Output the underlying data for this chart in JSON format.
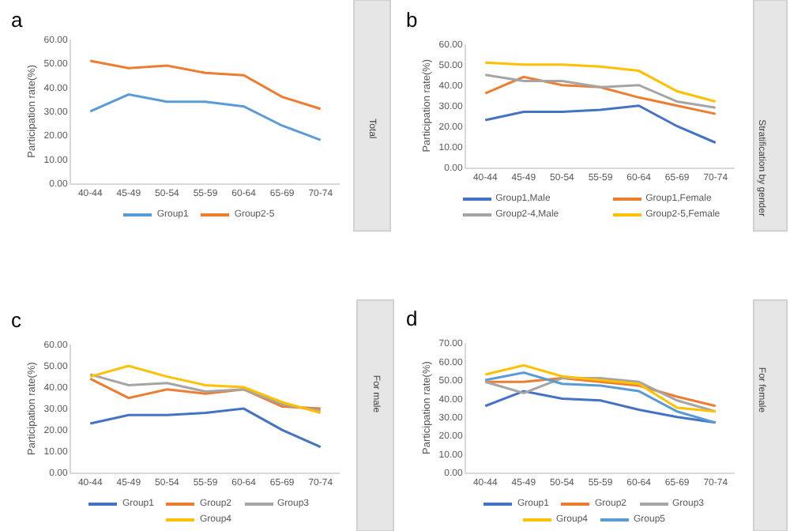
{
  "chart_data": [
    {
      "type": "line",
      "title": "a",
      "ylabel": "Participation rate(%)",
      "annotations": [
        "Total"
      ],
      "legend": "bottom",
      "categories": [
        "40-44",
        "45-49",
        "50-54",
        "55-59",
        "60-64",
        "65-69",
        "70-74"
      ],
      "ylim": [
        0,
        60
      ],
      "yticks": [
        {
          "value": 0,
          "label": "0.00"
        },
        {
          "value": 10,
          "label": "10.00"
        },
        {
          "value": 20,
          "label": "20.00"
        },
        {
          "value": 30,
          "label": "30.00"
        },
        {
          "value": 40,
          "label": "40.00"
        },
        {
          "value": 50,
          "label": "50.00"
        },
        {
          "value": 60,
          "label": "60.00"
        }
      ],
      "series": [
        {
          "name": "Group1",
          "color": "#5b9bd5",
          "values": [
            30,
            37,
            34,
            34,
            32,
            24,
            18
          ]
        },
        {
          "name": "Group2-5",
          "color": "#ed7d31",
          "values": [
            51,
            48,
            49,
            46,
            45,
            36,
            31
          ]
        }
      ]
    },
    {
      "type": "line",
      "title": "b",
      "ylabel": "Participation rate(%)",
      "annotations": [
        "Stratification by gender"
      ],
      "legend": "bottom",
      "categories": [
        "40-44",
        "45-49",
        "50-54",
        "55-59",
        "60-64",
        "65-69",
        "70-74"
      ],
      "ylim": [
        0,
        60
      ],
      "yticks": [
        {
          "value": 0,
          "label": "0.00"
        },
        {
          "value": 10,
          "label": "10.00"
        },
        {
          "value": 20,
          "label": "20.00"
        },
        {
          "value": 30,
          "label": "30.00"
        },
        {
          "value": 40,
          "label": "40.00"
        },
        {
          "value": 50,
          "label": "50.00"
        },
        {
          "value": 60,
          "label": "60.00"
        }
      ],
      "series": [
        {
          "name": "Group1,Male",
          "color": "#4472c4",
          "values": [
            23,
            27,
            27,
            28,
            30,
            20,
            12
          ]
        },
        {
          "name": "Group1,Female",
          "color": "#ed7d31",
          "values": [
            36,
            44,
            40,
            39,
            34,
            30,
            26
          ]
        },
        {
          "name": "Group2-4,Male",
          "color": "#a5a5a5",
          "values": [
            45,
            42,
            42,
            39,
            40,
            32,
            29
          ]
        },
        {
          "name": "Group2-5,Female",
          "color": "#ffc000",
          "values": [
            51,
            50,
            50,
            49,
            47,
            37,
            32
          ]
        }
      ]
    },
    {
      "type": "line",
      "title": "c",
      "ylabel": "Participation rate(%)",
      "annotations": [
        "For male"
      ],
      "legend": "bottom",
      "categories": [
        "40-44",
        "45-49",
        "50-54",
        "55-59",
        "60-64",
        "65-69",
        "70-74"
      ],
      "ylim": [
        0,
        60
      ],
      "yticks": [
        {
          "value": 0,
          "label": "0.00"
        },
        {
          "value": 10,
          "label": "10.00"
        },
        {
          "value": 20,
          "label": "20.00"
        },
        {
          "value": 30,
          "label": "30.00"
        },
        {
          "value": 40,
          "label": "40.00"
        },
        {
          "value": 50,
          "label": "50.00"
        },
        {
          "value": 60,
          "label": "60.00"
        }
      ],
      "series": [
        {
          "name": "Group1",
          "color": "#4472c4",
          "values": [
            23,
            27,
            27,
            28,
            30,
            20,
            12
          ]
        },
        {
          "name": "Group2",
          "color": "#ed7d31",
          "values": [
            44,
            35,
            39,
            37,
            39,
            31,
            30
          ]
        },
        {
          "name": "Group3",
          "color": "#a5a5a5",
          "values": [
            46,
            41,
            42,
            38,
            39,
            32,
            29
          ]
        },
        {
          "name": "Group4",
          "color": "#ffc000",
          "values": [
            45,
            50,
            45,
            41,
            40,
            33,
            28
          ]
        }
      ]
    },
    {
      "type": "line",
      "title": "d",
      "ylabel": "Participation rate(%)",
      "annotations": [
        "For female"
      ],
      "legend": "bottom",
      "categories": [
        "40-44",
        "45-49",
        "50-54",
        "55-59",
        "60-64",
        "65-69",
        "70-74"
      ],
      "ylim": [
        0,
        70
      ],
      "yticks": [
        {
          "value": 0,
          "label": "0.00"
        },
        {
          "value": 10,
          "label": "10.00"
        },
        {
          "value": 20,
          "label": "20.00"
        },
        {
          "value": 30,
          "label": "30.00"
        },
        {
          "value": 40,
          "label": "40.00"
        },
        {
          "value": 50,
          "label": "50.00"
        },
        {
          "value": 60,
          "label": "60.00"
        },
        {
          "value": 70,
          "label": "70.00"
        }
      ],
      "series": [
        {
          "name": "Group1",
          "color": "#4472c4",
          "values": [
            36,
            44,
            40,
            39,
            34,
            30,
            27
          ]
        },
        {
          "name": "Group2",
          "color": "#ed7d31",
          "values": [
            49,
            49,
            51,
            49,
            47,
            41,
            36
          ]
        },
        {
          "name": "Group3",
          "color": "#a5a5a5",
          "values": [
            49,
            43,
            51,
            51,
            49,
            39,
            33
          ]
        },
        {
          "name": "Group4",
          "color": "#ffc000",
          "values": [
            53,
            58,
            52,
            50,
            48,
            35,
            33
          ]
        },
        {
          "name": "Group5",
          "color": "#5b9bd5",
          "values": [
            50,
            54,
            48,
            47,
            44,
            33,
            27
          ]
        }
      ]
    }
  ]
}
